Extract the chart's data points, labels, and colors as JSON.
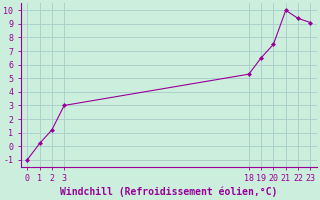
{
  "x": [
    0,
    1,
    2,
    3,
    18,
    19,
    20,
    21,
    22,
    23
  ],
  "y": [
    -1,
    0.2,
    1.2,
    3.0,
    5.3,
    6.5,
    7.5,
    10.0,
    9.4,
    9.1
  ],
  "line_color": "#990099",
  "marker": "D",
  "marker_size": 2.0,
  "bg_color": "#cceedd",
  "grid_color": "#aacccc",
  "spine_color": "#990099",
  "tick_color": "#990099",
  "xlabel": "Windchill (Refroidissement éolien,°C)",
  "xlabel_fontsize": 7.0,
  "ylim": [
    -1.5,
    10.5
  ],
  "xlim": [
    -0.5,
    23.5
  ],
  "xticks": [
    0,
    1,
    2,
    3,
    18,
    19,
    20,
    21,
    22,
    23
  ],
  "yticks": [
    -1,
    0,
    1,
    2,
    3,
    4,
    5,
    6,
    7,
    8,
    9,
    10
  ],
  "tick_fontsize": 6.0,
  "linewidth": 0.8
}
